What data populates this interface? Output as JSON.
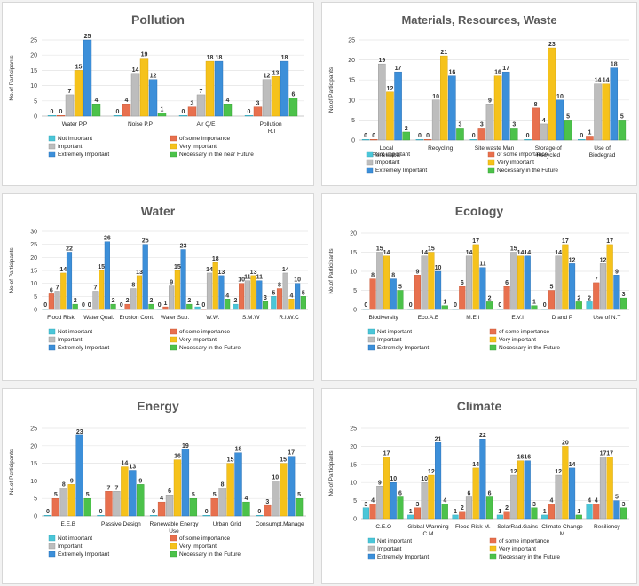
{
  "series_names": [
    "Not important",
    "of some importance",
    "Important",
    "Very important",
    "Extremely important",
    "Necessary in the near future"
  ],
  "colors": [
    "#4bc6d8",
    "#e8704e",
    "#bdbdbd",
    "#f5c21b",
    "#3c8fd9",
    "#4cc24a"
  ],
  "chart_data": [
    {
      "type": "bar",
      "title": "Pollution",
      "ylabel": "No.of Participants",
      "ylim": [
        0,
        25
      ],
      "yticks": [
        0,
        5,
        10,
        15,
        20,
        25
      ],
      "categories": [
        "Water P.P",
        "Noise P.P",
        "Air Q/E",
        "Pollution   R.I"
      ],
      "series": [
        {
          "name": "Not important",
          "values": [
            0,
            0,
            0,
            0
          ]
        },
        {
          "name": "of some importance",
          "values": [
            0,
            4,
            3,
            3
          ]
        },
        {
          "name": "Important",
          "values": [
            7,
            14,
            7,
            12
          ]
        },
        {
          "name": "Very important",
          "values": [
            15,
            19,
            18,
            13
          ]
        },
        {
          "name": "Extremely Important",
          "values": [
            25,
            12,
            18,
            18
          ]
        },
        {
          "name": "Necessary in the near Future",
          "values": [
            4,
            1,
            4,
            6
          ]
        }
      ],
      "legend": [
        "Not important",
        "of some importance",
        "Important",
        "Very important",
        "Extremely Important",
        "Necessary in the near Future"
      ]
    },
    {
      "type": "bar",
      "title": "Materials, Resources, Waste",
      "ylabel": "No.of Participants",
      "ylim": [
        0,
        25
      ],
      "yticks": [
        0,
        5,
        10,
        15,
        20,
        25
      ],
      "categories": [
        "Local Renewable",
        "Recycling",
        "Site waste Man",
        "Storage of Recycled",
        "Use of Biodegrad"
      ],
      "series": [
        {
          "name": "Not important",
          "values": [
            0,
            0,
            0,
            0,
            0
          ]
        },
        {
          "name": "of some importance",
          "values": [
            0,
            0,
            3,
            8,
            1
          ]
        },
        {
          "name": "Important",
          "values": [
            19,
            10,
            9,
            4,
            14
          ]
        },
        {
          "name": "Very important",
          "values": [
            12,
            21,
            16,
            23,
            14
          ]
        },
        {
          "name": "Extremely Important",
          "values": [
            17,
            16,
            17,
            10,
            18
          ]
        },
        {
          "name": "Necessary in the Future",
          "values": [
            2,
            3,
            3,
            5,
            5
          ]
        }
      ],
      "legend": [
        "Not important",
        "of some importance",
        "Important",
        "Very important",
        "Extremely Important",
        "Necessary in the Future"
      ]
    },
    {
      "type": "bar",
      "title": "Water",
      "ylabel": "No.of Participants",
      "ylim": [
        0,
        30
      ],
      "yticks": [
        0,
        5,
        10,
        15,
        20,
        25,
        30
      ],
      "categories": [
        "Flood Risk",
        "Water Qual.",
        "Erosion Cont.",
        "Water Sup.",
        "W.W.",
        "S.M.W",
        "R.I.W.C"
      ],
      "series": [
        {
          "name": "Not important",
          "values": [
            0,
            0,
            0,
            0,
            1,
            2,
            5
          ]
        },
        {
          "name": "of some importance",
          "values": [
            6,
            0,
            2,
            1,
            0,
            10,
            8
          ]
        },
        {
          "name": "Important",
          "values": [
            7,
            7,
            8,
            9,
            14,
            11,
            14
          ]
        },
        {
          "name": "Very important",
          "values": [
            14,
            15,
            13,
            15,
            18,
            13,
            4
          ]
        },
        {
          "name": "Extremely Important",
          "values": [
            22,
            26,
            25,
            23,
            13,
            11,
            10
          ]
        },
        {
          "name": "Necessary in the Future",
          "values": [
            2,
            2,
            2,
            2,
            4,
            3,
            5
          ]
        }
      ],
      "legend": [
        "Not important",
        "of some importance",
        "Important",
        "Very important",
        "Extremely Important",
        "Necessary in the Future"
      ]
    },
    {
      "type": "bar",
      "title": "Ecology",
      "ylabel": "No.of Participants",
      "ylim": [
        0,
        20
      ],
      "yticks": [
        0,
        5,
        10,
        15,
        20
      ],
      "categories": [
        "Biodiversity",
        "Eco.A.E",
        "M.E.I",
        "E.V.I",
        "D and P",
        "Use of N.T"
      ],
      "series": [
        {
          "name": "Not important",
          "values": [
            0,
            0,
            0,
            0,
            0,
            2
          ]
        },
        {
          "name": "of some importance",
          "values": [
            8,
            9,
            6,
            6,
            5,
            7
          ]
        },
        {
          "name": "Important",
          "values": [
            15,
            14,
            14,
            15,
            14,
            12
          ]
        },
        {
          "name": "Very important",
          "values": [
            14,
            15,
            17,
            14,
            17,
            17
          ]
        },
        {
          "name": "Extremely Important",
          "values": [
            8,
            10,
            11,
            14,
            12,
            9
          ]
        },
        {
          "name": "Necessary in the Future",
          "values": [
            5,
            1,
            2,
            1,
            2,
            3
          ]
        }
      ],
      "legend": [
        "Not important",
        "of some importance",
        "Important",
        "Very important",
        "Extremely Important",
        "Necessary in the Future"
      ]
    },
    {
      "type": "bar",
      "title": "Energy",
      "ylabel": "No.of Participants",
      "ylim": [
        0,
        25
      ],
      "yticks": [
        0,
        5,
        10,
        15,
        20,
        25
      ],
      "categories": [
        "E.E.B",
        "Passive Design",
        "Renewable Energy Use",
        "Urban Grid",
        "Consumpt.Manage"
      ],
      "series": [
        {
          "name": "Not important",
          "values": [
            0,
            0,
            0,
            0,
            0
          ]
        },
        {
          "name": "of some importance",
          "values": [
            5,
            7,
            4,
            5,
            3
          ]
        },
        {
          "name": "Important",
          "values": [
            8,
            7,
            6,
            8,
            10
          ]
        },
        {
          "name": "Very important",
          "values": [
            9,
            14,
            16,
            15,
            15
          ]
        },
        {
          "name": "Extremely Important",
          "values": [
            23,
            13,
            19,
            18,
            17
          ]
        },
        {
          "name": "Necessary in the Future",
          "values": [
            5,
            9,
            5,
            4,
            5
          ]
        }
      ],
      "legend": [
        "Not important",
        "of some importance",
        "Important",
        "Very important",
        "Extremely Important",
        "Necessary in the Future"
      ]
    },
    {
      "type": "bar",
      "title": "Climate",
      "ylabel": "No.of Participants",
      "ylim": [
        0,
        25
      ],
      "yticks": [
        0,
        5,
        10,
        15,
        20,
        25
      ],
      "categories": [
        "C.E.O",
        "Global Warming C.M",
        "Flood Risk M.",
        "SolarRad.Gains",
        "Climate Change M",
        "Resiliency"
      ],
      "series": [
        {
          "name": "Not important",
          "values": [
            3,
            1,
            1,
            1,
            1,
            4
          ]
        },
        {
          "name": "of some importance",
          "values": [
            4,
            3,
            2,
            2,
            4,
            4
          ]
        },
        {
          "name": "Important",
          "values": [
            9,
            10,
            6,
            12,
            12,
            17
          ]
        },
        {
          "name": "Very important",
          "values": [
            17,
            12,
            14,
            16,
            20,
            17
          ]
        },
        {
          "name": "Extremely Important",
          "values": [
            10,
            21,
            22,
            16,
            14,
            5
          ]
        },
        {
          "name": "Necessary in the Future",
          "values": [
            6,
            4,
            6,
            3,
            1,
            3
          ]
        }
      ],
      "legend": [
        "Not important",
        "of some importance",
        "Important",
        "Very important",
        "Extremely Important",
        "Necessary in the Future"
      ]
    }
  ]
}
